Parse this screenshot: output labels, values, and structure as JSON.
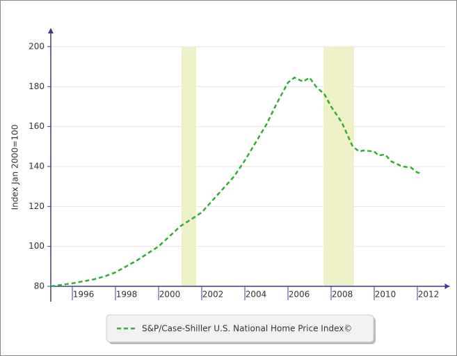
{
  "chart_data": {
    "type": "line",
    "ylabel": "Index Jan 2000=100",
    "x": [
      1995,
      1996,
      1996.5,
      1997,
      1997.5,
      1998,
      1998.5,
      1999,
      1999.5,
      2000,
      2000.5,
      2001,
      2001.5,
      2002,
      2002.5,
      2003,
      2003.5,
      2004,
      2004.5,
      2005,
      2005.5,
      2006,
      2006.3,
      2006.7,
      2007,
      2007.3,
      2007.7,
      2008,
      2008.5,
      2009,
      2009.3,
      2009.5,
      2010,
      2010.2,
      2010.5,
      2010.8,
      2011.3,
      2011.7,
      2012,
      2012.2
    ],
    "series": [
      {
        "name": "S&P/Case-Shiller U.S. National Home Price Index©",
        "color": "#33aa33",
        "values": [
          80,
          81.5,
          82.5,
          83.5,
          85,
          87,
          90,
          93,
          96.5,
          100,
          105,
          110,
          113.5,
          117,
          123,
          129,
          135,
          143,
          152,
          161,
          172,
          182,
          184.5,
          182.5,
          184.5,
          180,
          176,
          170,
          162,
          150,
          147.5,
          148,
          147.5,
          145.5,
          146,
          142.5,
          140,
          139.5,
          137,
          136.5
        ]
      }
    ],
    "shaded_periods": [
      {
        "start": 2001.06,
        "end": 2001.74
      },
      {
        "start": 2007.65,
        "end": 2009.06
      }
    ],
    "shade_color": "#eef0c8",
    "xlim": [
      1995,
      2013.5
    ],
    "xticks": [
      1996,
      1998,
      2000,
      2002,
      2004,
      2006,
      2008,
      2010,
      2012
    ],
    "ylim": [
      80,
      208
    ],
    "yticks": [
      80,
      100,
      120,
      140,
      160,
      180,
      200
    ],
    "grid": true,
    "legend": "bottom"
  }
}
